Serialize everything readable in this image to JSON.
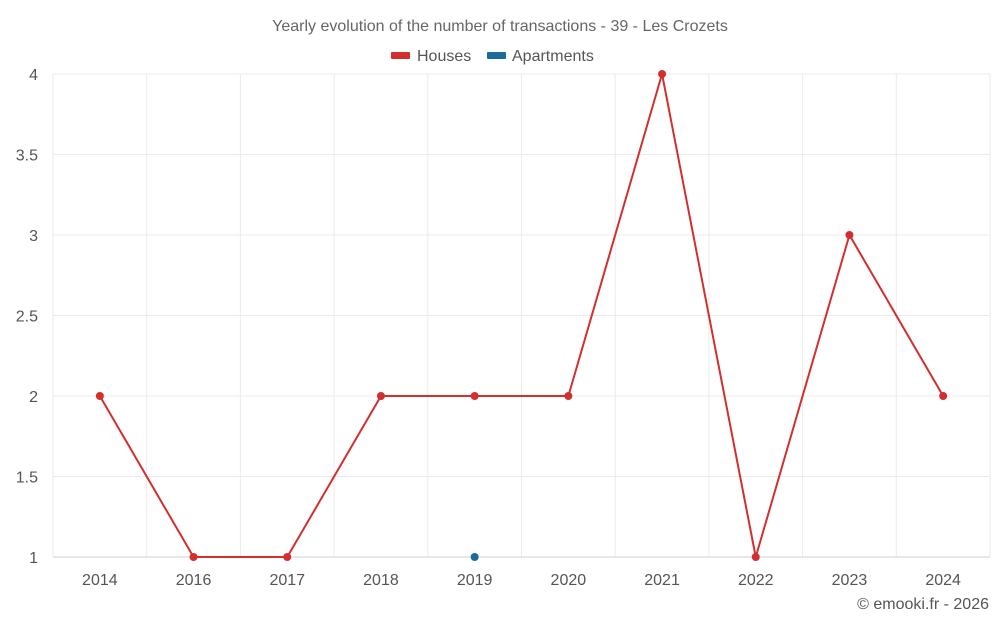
{
  "chart_data": {
    "type": "line",
    "title": "Yearly evolution of the number of transactions - 39 - Les Crozets",
    "categories": [
      "2014",
      "2016",
      "2017",
      "2018",
      "2019",
      "2020",
      "2021",
      "2022",
      "2023",
      "2024"
    ],
    "series": [
      {
        "name": "Houses",
        "color": "#d32f2f",
        "values": [
          2,
          1,
          1,
          2,
          2,
          2,
          4,
          1,
          3,
          2
        ]
      },
      {
        "name": "Apartments",
        "color": "#1a6a9a",
        "values": [
          null,
          null,
          null,
          null,
          1,
          null,
          null,
          null,
          null,
          null
        ]
      }
    ],
    "ylim": [
      1,
      4
    ],
    "yticks": [
      "1",
      "1.5",
      "2",
      "2.5",
      "3",
      "3.5",
      "4"
    ],
    "grid": true,
    "legend_position": "top-center"
  },
  "credit": "© emooki.fr - 2026"
}
